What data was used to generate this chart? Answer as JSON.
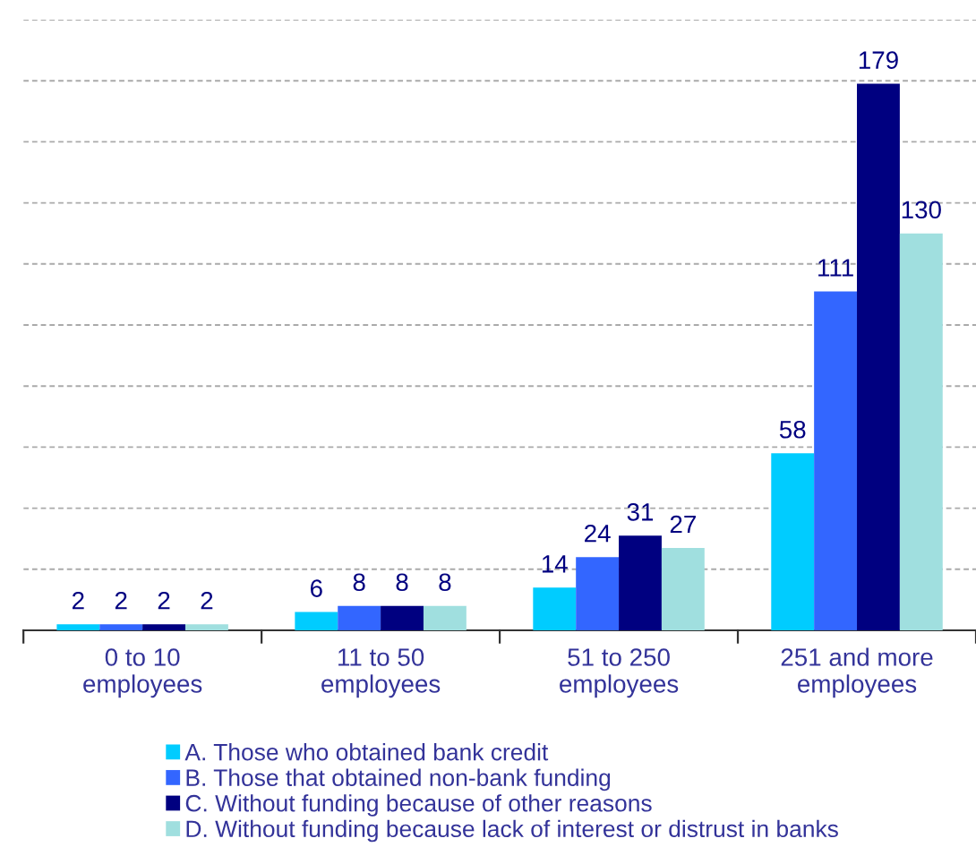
{
  "chart_data": {
    "type": "bar",
    "categories": [
      "0 to 10\nemployees",
      "11 to 50\nemployees",
      "51 to 250\nemployees",
      "251 and more\nemployees"
    ],
    "series": [
      {
        "name": "A. Those who obtained bank credit",
        "color": "#00ccff",
        "values": [
          2,
          6,
          14,
          58
        ]
      },
      {
        "name": "B. Those that obtained non-bank funding",
        "color": "#3366ff",
        "values": [
          2,
          8,
          24,
          111
        ]
      },
      {
        "name": "C. Without funding because of other reasons",
        "color": "#000080",
        "values": [
          2,
          8,
          31,
          179
        ]
      },
      {
        "name": "D. Without funding because lack of interest or distrust in banks",
        "color": "#a0dfdf",
        "values": [
          2,
          8,
          27,
          130
        ]
      }
    ],
    "ylim": [
      0,
      200
    ],
    "yticks": [
      {
        "value": 0,
        "label": null
      },
      {
        "value": 20,
        "label": null
      },
      {
        "value": 40,
        "label": null
      },
      {
        "value": 60,
        "label": null
      },
      {
        "value": 80,
        "label": null
      },
      {
        "value": 100,
        "label": null
      },
      {
        "value": 120,
        "label": null
      },
      {
        "value": 140,
        "label": null
      },
      {
        "value": 160,
        "label": null
      },
      {
        "value": 180,
        "label": null
      },
      {
        "value": 200,
        "label": null
      }
    ],
    "tick_labels": "x",
    "grid": "y",
    "data_labels": true,
    "legend": "bottom"
  }
}
